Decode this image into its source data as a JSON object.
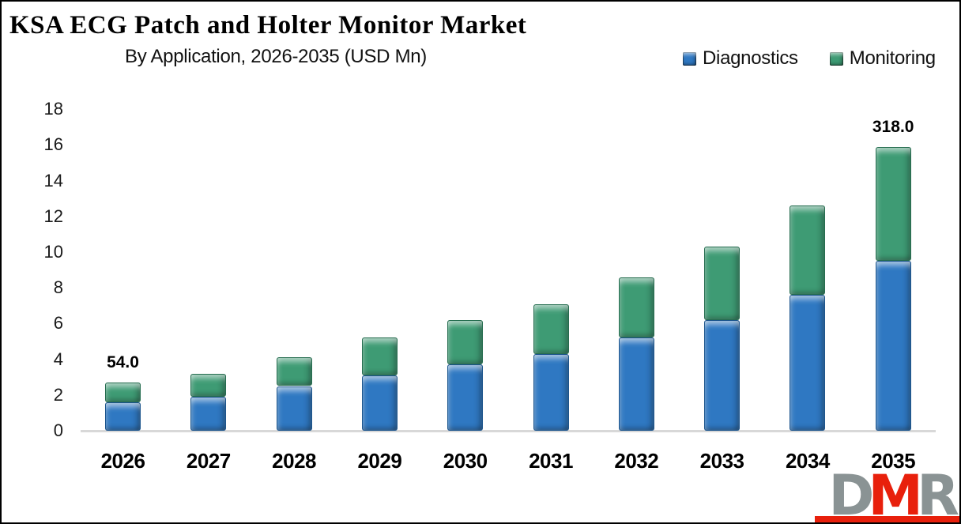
{
  "header": {
    "title": "KSA ECG Patch and Holter Monitor Market",
    "subtitle": "By Application, 2026-2035 (USD Mn)"
  },
  "legend": {
    "items": [
      {
        "label": "Diagnostics",
        "color": "#2F78C2"
      },
      {
        "label": "Monitoring",
        "color": "#3E9B74"
      }
    ]
  },
  "chart_data": {
    "type": "bar",
    "stacked": true,
    "title": "KSA ECG Patch and Holter Monitor Market",
    "subtitle": "By Application, 2026-2035 (USD Mn)",
    "unit": "USD Mn",
    "categories": [
      "2026",
      "2027",
      "2028",
      "2029",
      "2030",
      "2031",
      "2032",
      "2033",
      "2034",
      "2035"
    ],
    "series": [
      {
        "name": "Diagnostics",
        "color": "#2F78C2",
        "values": [
          1.6,
          1.9,
          2.5,
          3.1,
          3.7,
          4.3,
          5.2,
          6.2,
          7.6,
          9.5
        ]
      },
      {
        "name": "Monitoring",
        "color": "#3E9B74",
        "values": [
          1.1,
          1.3,
          1.6,
          2.1,
          2.5,
          2.8,
          3.4,
          4.1,
          5.0,
          6.4
        ]
      }
    ],
    "annotations": [
      {
        "category": "2026",
        "text": "54.0"
      },
      {
        "category": "2035",
        "text": "318.0"
      }
    ],
    "y_axis": {
      "min": 0,
      "max": 18,
      "step": 2,
      "ticks": [
        0,
        2,
        4,
        6,
        8,
        10,
        12,
        14,
        16,
        18
      ]
    },
    "x_axis": {
      "labels": [
        "2026",
        "2027",
        "2028",
        "2029",
        "2030",
        "2031",
        "2032",
        "2033",
        "2034",
        "2035"
      ]
    },
    "grid": false,
    "legend_position": "top-right"
  },
  "logo": {
    "letters": [
      {
        "char": "D",
        "color": "#8A9394"
      },
      {
        "char": "M",
        "color": "#E8200C"
      },
      {
        "char": "R",
        "color": "#8A9394"
      }
    ],
    "underline_color": "#E8200C"
  },
  "colors": {
    "background": "#FFFFFF",
    "border": "#000000",
    "axis_line": "#D8D8D8",
    "text": "#000000"
  }
}
